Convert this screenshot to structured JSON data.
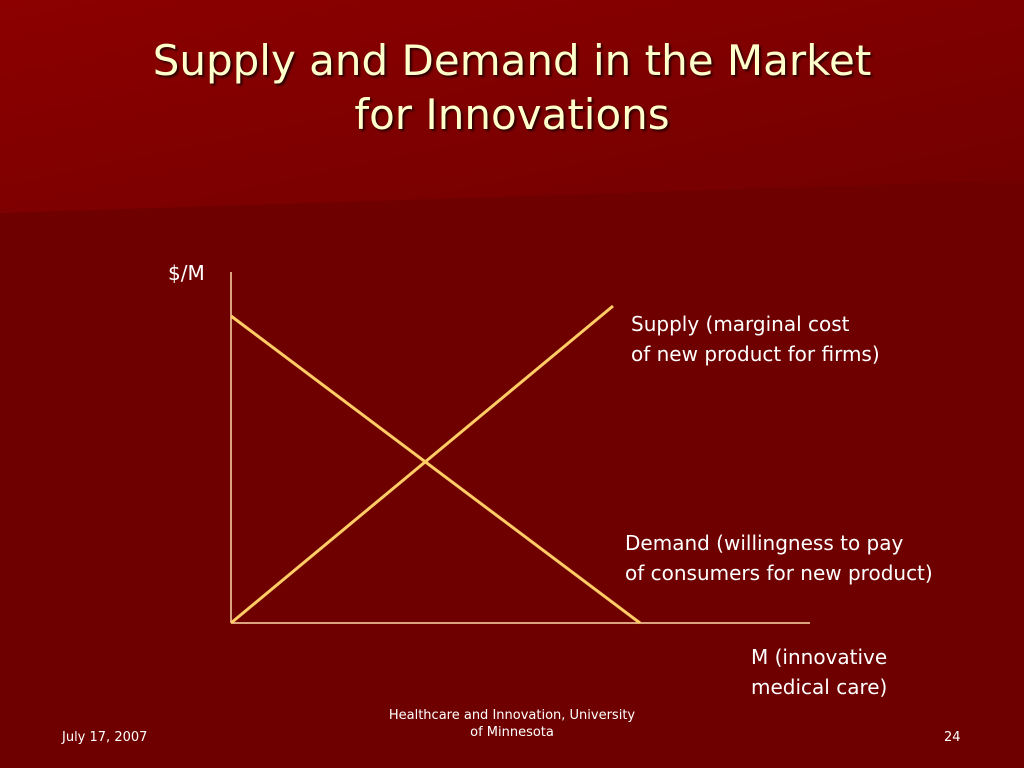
{
  "title": {
    "line1": "Supply and Demand in the Market",
    "line2": "for Innovations"
  },
  "diagram": {
    "y_axis_label": "$/M",
    "x_axis_label": {
      "line1": "M (innovative",
      "line2": "medical care)"
    },
    "supply_label": {
      "line1": "Supply (marginal cost",
      "line2": "of new product for firms)"
    },
    "demand_label": {
      "line1": "Demand (willingness to pay",
      "line2": "of consumers for new product)"
    }
  },
  "footer": {
    "date": "July 17, 2007",
    "center_line1": "Healthcare and Innovation, University",
    "center_line2": "of Minnesota",
    "page_number": "24"
  },
  "colors": {
    "background": "#6e0000",
    "title_band": "#8a0000",
    "title_text": "#ffffcc",
    "curve": "#ffcc66",
    "axis": "#ffd9a8"
  }
}
